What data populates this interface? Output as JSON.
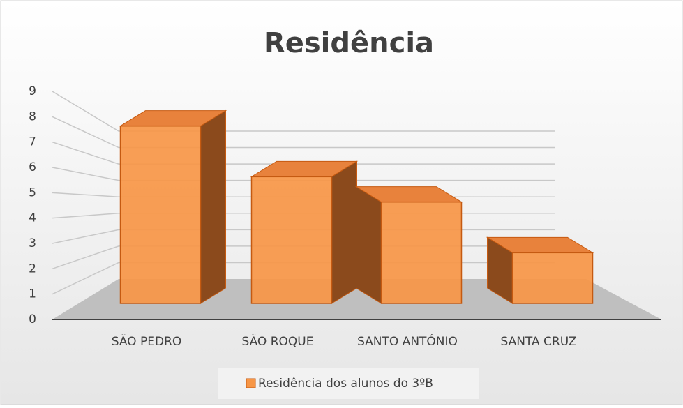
{
  "chart_data": {
    "type": "bar3d",
    "title": "Residência",
    "categories": [
      "SÃO PEDRO",
      "SÃO ROQUE",
      "SANTO ANTÓNIO",
      "SANTA CRUZ"
    ],
    "series": [
      {
        "name": "Residência dos alunos do 3ºB",
        "color": "#f79646",
        "values": [
          7,
          5,
          4,
          2
        ]
      }
    ],
    "ylim": [
      0,
      9
    ],
    "yticks": [
      0,
      1,
      2,
      3,
      4,
      5,
      6,
      7,
      8,
      9
    ],
    "grid": true,
    "legend": "bottom"
  }
}
